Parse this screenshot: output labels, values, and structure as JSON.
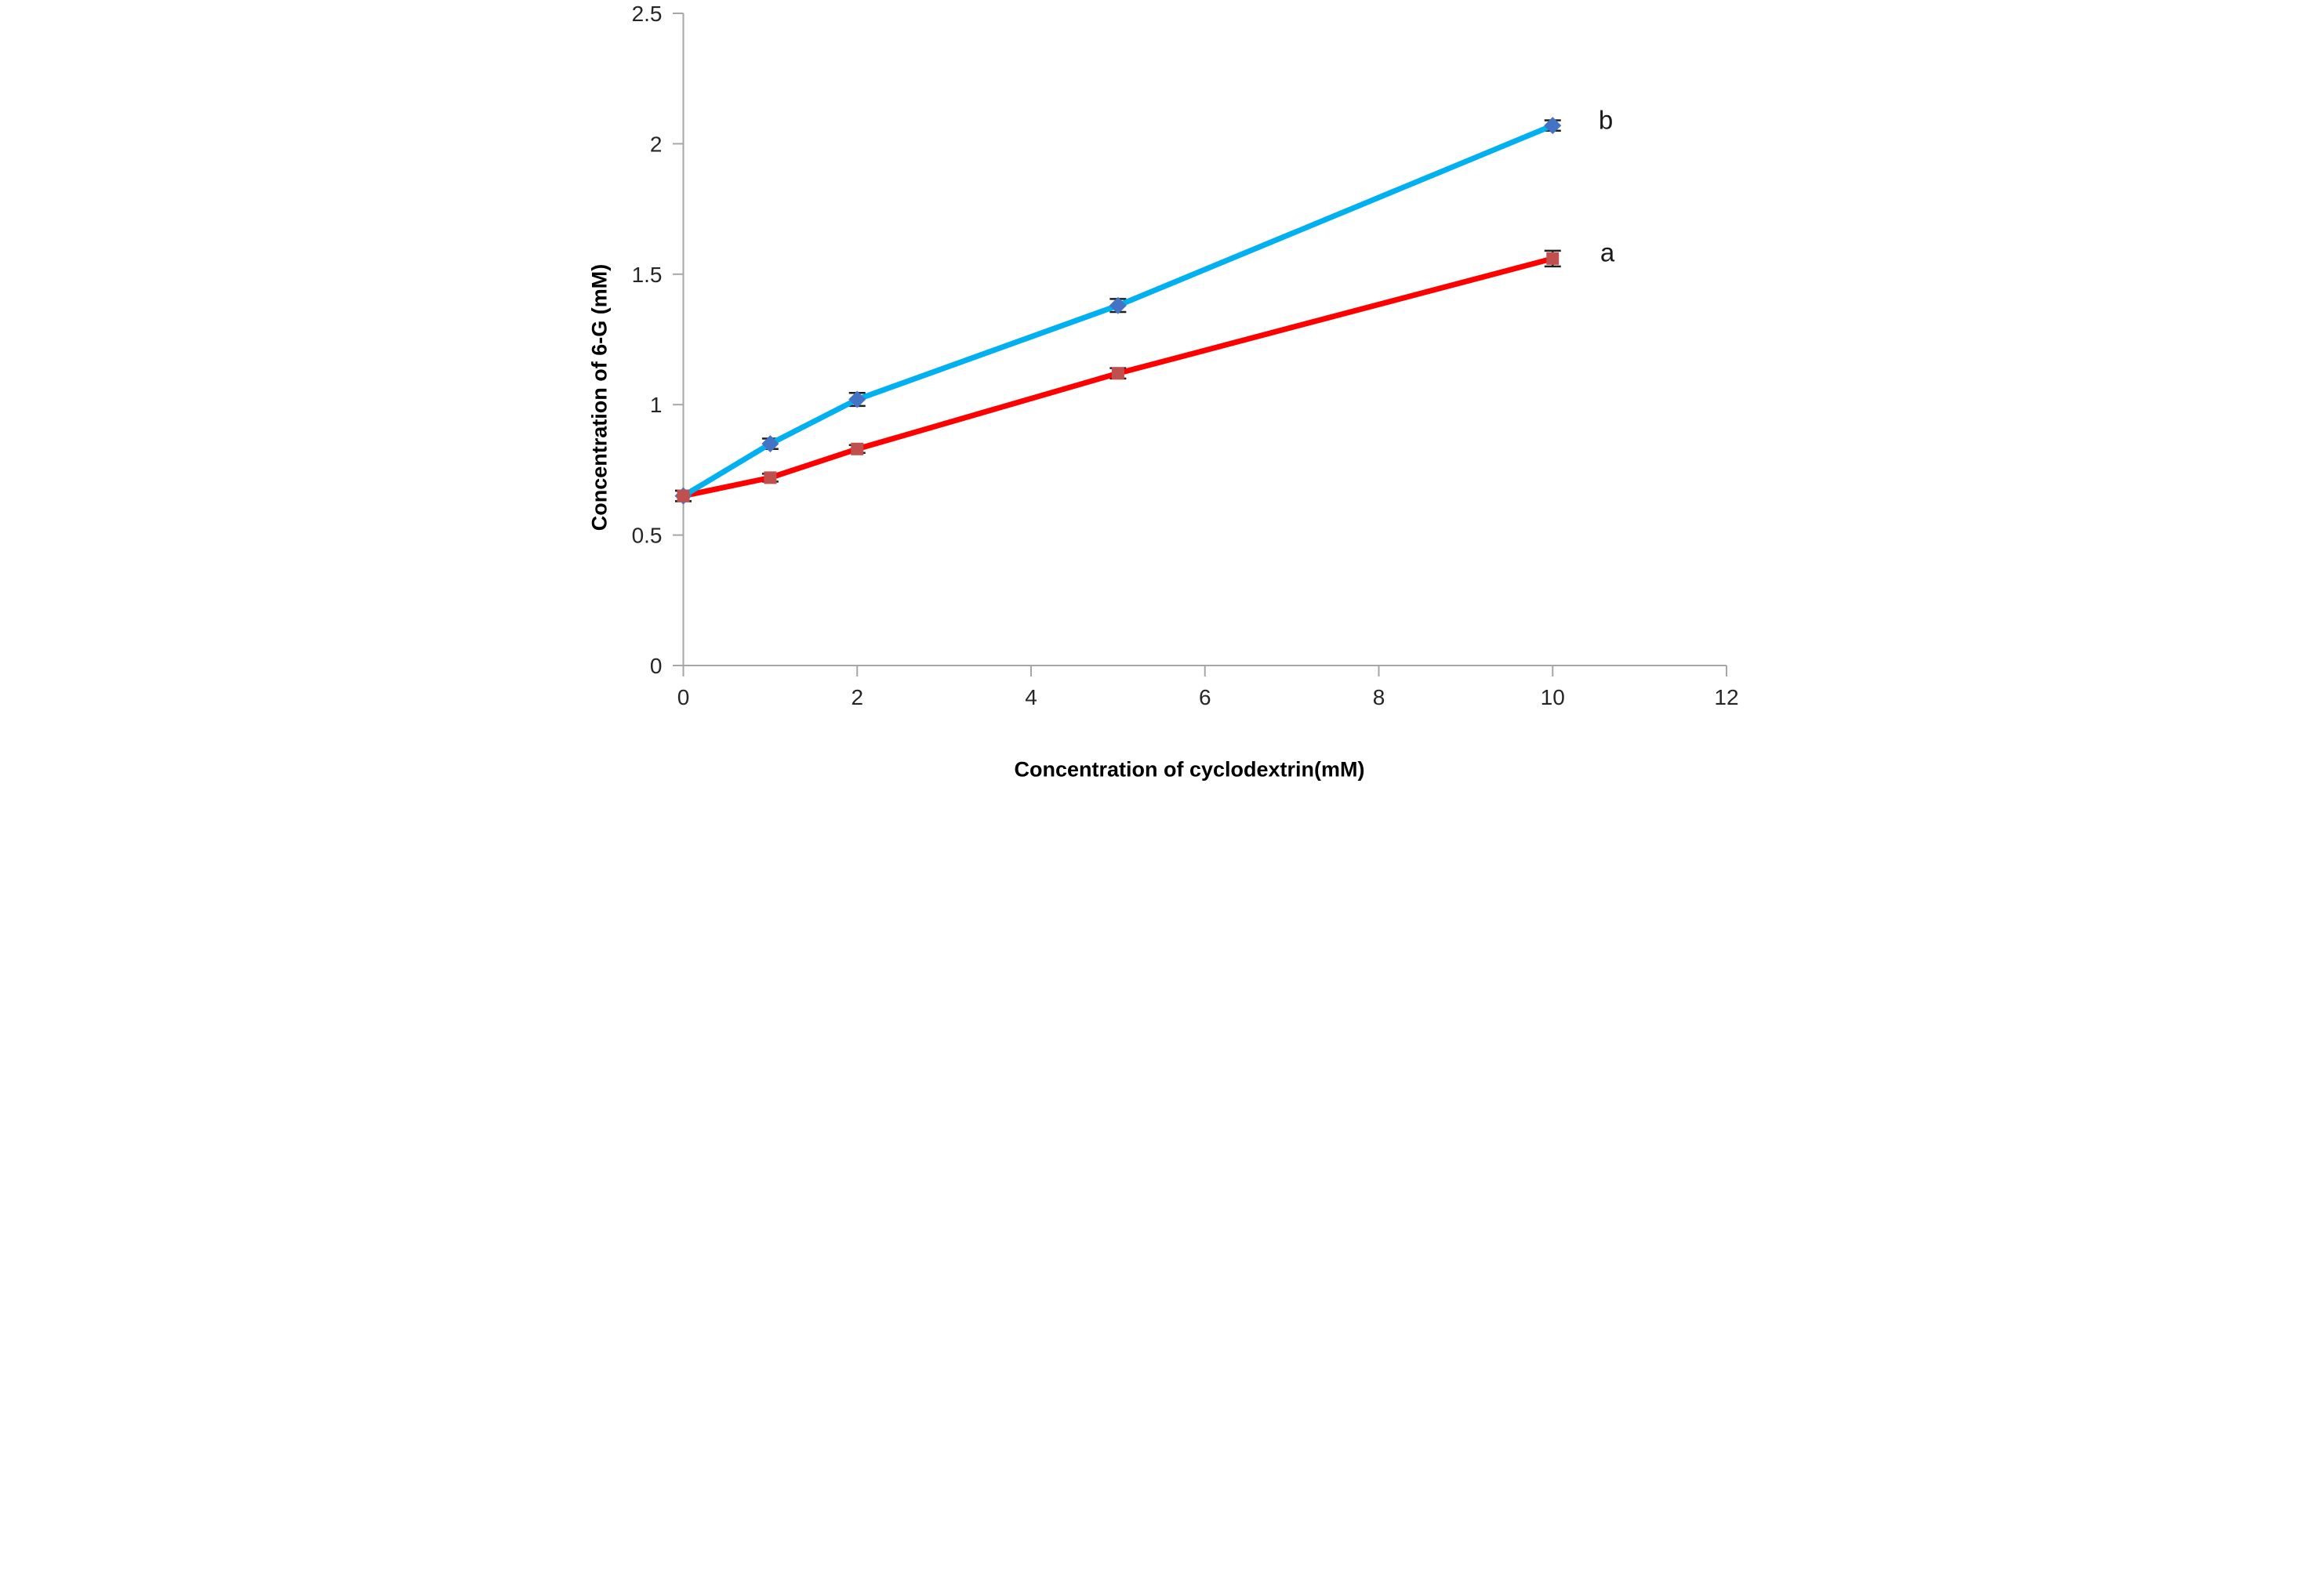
{
  "chart_data": {
    "type": "line",
    "title": "",
    "xlabel": "Concentration of cyclodextrin(mM)",
    "ylabel": "Concentration of 6-G (mM)",
    "x": [
      0,
      1,
      2,
      5,
      10
    ],
    "series": [
      {
        "name": "a",
        "label": "a",
        "color": "#FF0000",
        "marker": "square",
        "marker_color": "#C0504D",
        "values": [
          0.65,
          0.72,
          0.83,
          1.12,
          1.56
        ],
        "errors": [
          0.02,
          0.015,
          0.015,
          0.02,
          0.03
        ]
      },
      {
        "name": "b",
        "label": "b",
        "color": "#00B0F0",
        "marker": "diamond",
        "marker_color": "#4472C4",
        "values": [
          0.65,
          0.85,
          1.02,
          1.38,
          2.07
        ],
        "errors": [
          0.02,
          0.02,
          0.025,
          0.025,
          0.02
        ]
      }
    ],
    "xlim": [
      0,
      12
    ],
    "ylim": [
      0,
      2.5
    ],
    "x_ticks": [
      "0",
      "2",
      "4",
      "6",
      "8",
      "10",
      "12"
    ],
    "y_ticks": [
      "0",
      "0.5",
      "1",
      "1.5",
      "2",
      "2.5"
    ],
    "grid": false,
    "legend": "end-of-line-labels",
    "background_color": "#ffffff",
    "axis_color": "#A6A6A6",
    "tick_label_color": "#262626",
    "error_bar_color": "#1f1f1f"
  }
}
